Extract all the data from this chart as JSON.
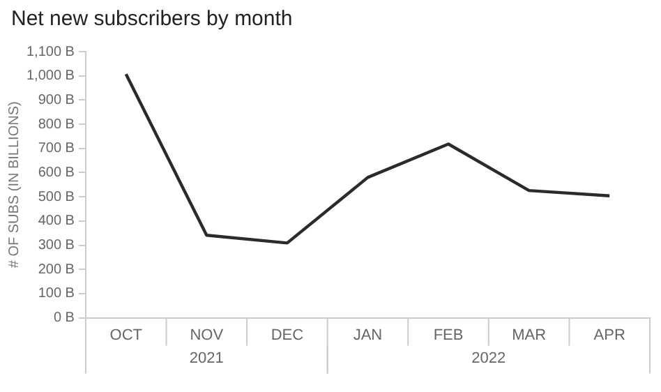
{
  "chart_data": {
    "type": "line",
    "title": "Net new subscribers by month",
    "ylabel": "# OF SUBS (IN BILLIONS)",
    "categories": [
      "OCT",
      "NOV",
      "DEC",
      "JAN",
      "FEB",
      "MAR",
      "APR"
    ],
    "series": [
      {
        "color": "#2b2b2b",
        "values": [
          1007,
          341,
          309,
          580,
          718,
          526,
          504
        ]
      }
    ],
    "ylim": [
      0,
      1100
    ],
    "yticks": [
      {
        "value": 0,
        "label": "0 B"
      },
      {
        "value": 100,
        "label": "100 B"
      },
      {
        "value": 200,
        "label": "200 B"
      },
      {
        "value": 300,
        "label": "300 B"
      },
      {
        "value": 400,
        "label": "400 B"
      },
      {
        "value": 500,
        "label": "500 B"
      },
      {
        "value": 600,
        "label": "600 B"
      },
      {
        "value": 700,
        "label": "700 B"
      },
      {
        "value": 800,
        "label": "800 B"
      },
      {
        "value": 900,
        "label": "900 B"
      },
      {
        "value": 1000,
        "label": "1,000 B"
      },
      {
        "value": 1100,
        "label": "1,100 B"
      }
    ],
    "annotations": [
      "2021",
      "2022"
    ],
    "grid": false,
    "legend": false,
    "marker": "none",
    "line_style": "solid"
  }
}
